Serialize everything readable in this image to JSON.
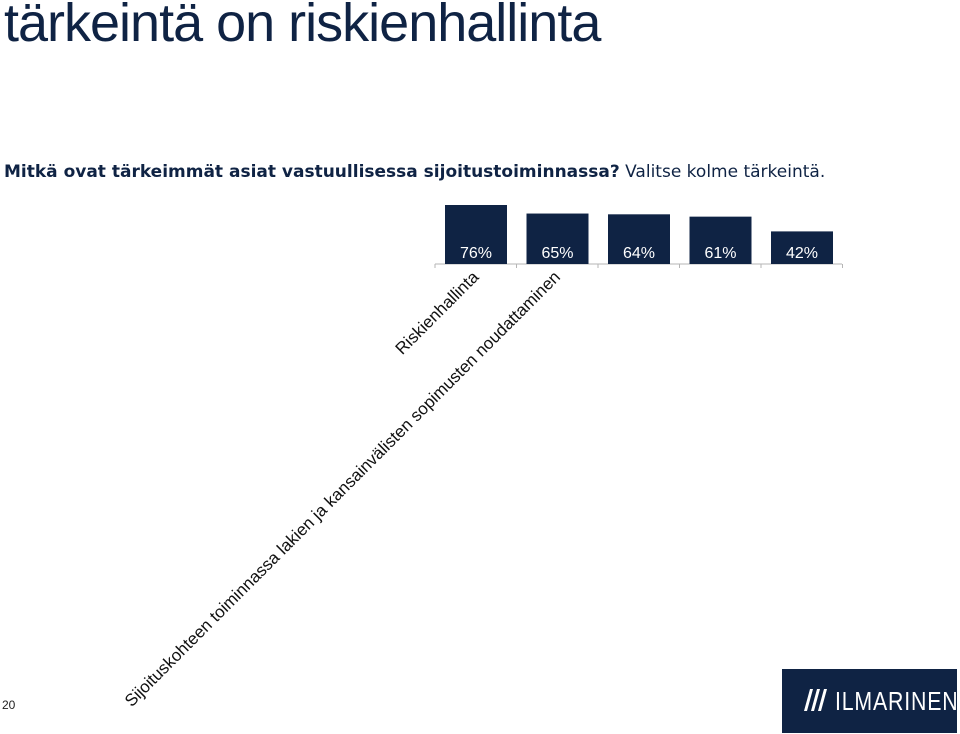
{
  "slide": {
    "title": "tärkeintä on riskienhallinta",
    "question_bold": "Mitkä ovat tärkeimmät asiat vastuullisessa sijoitustoiminnassa?",
    "question_rest": " Valitse kolme tärkeintä.",
    "page_number": "20"
  },
  "logo": {
    "text": "ILMARINEN",
    "icon": "ilmarinen-logo-mark-icon"
  },
  "colors": {
    "bar": "#0f2344",
    "text": "#0f2344",
    "background": "#ffffff"
  },
  "chart_data": {
    "type": "bar",
    "title": "",
    "xlabel": "",
    "ylabel": "",
    "categories": [
      "Riskienhallinta",
      "Sijoituskohteen toiminnassa lakien ja kansainvälisten sopimusten noudattaminen",
      "",
      "",
      ""
    ],
    "values": [
      76,
      65,
      64,
      61,
      42
    ],
    "value_labels": [
      "76%",
      "65%",
      "64%",
      "61%",
      "42%"
    ],
    "ylim": [
      0,
      100
    ],
    "grid": false,
    "legend": "none",
    "category_label_rotation": -45
  }
}
